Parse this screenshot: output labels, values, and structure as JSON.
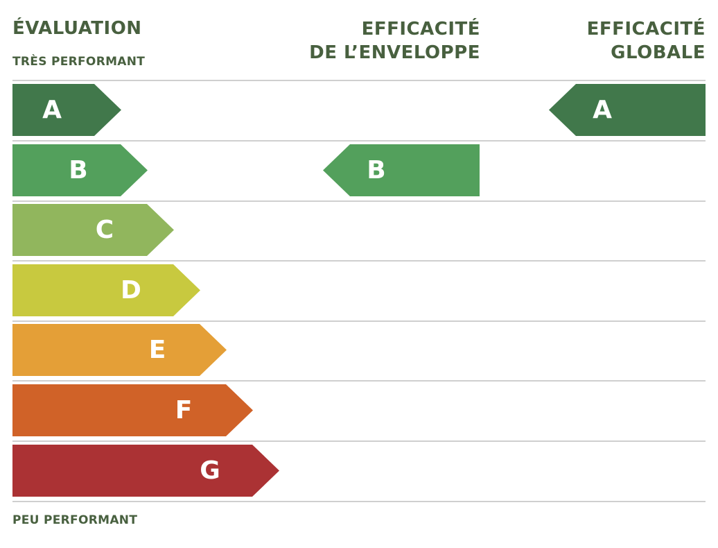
{
  "header": {
    "title": "ÉVALUATION",
    "top_label": "TRÈS PERFORMANT",
    "bottom_label": "PEU PERFORMANT",
    "col_envelope": "EFFICACITÉ\nDE L’ENVELOPPE",
    "col_global": "EFFICACITÉ\nGLOBALE"
  },
  "chart_data": {
    "type": "table",
    "scale": [
      {
        "letter": "A",
        "color": "#41784b"
      },
      {
        "letter": "B",
        "color": "#53a05c"
      },
      {
        "letter": "C",
        "color": "#91b65d"
      },
      {
        "letter": "D",
        "color": "#c8c93f"
      },
      {
        "letter": "E",
        "color": "#e49f37"
      },
      {
        "letter": "F",
        "color": "#d06228"
      },
      {
        "letter": "G",
        "color": "#ab3234"
      }
    ],
    "ratings": [
      {
        "column": "EFFICACITÉ DE L’ENVELOPPE",
        "rating": "B"
      },
      {
        "column": "EFFICACITÉ GLOBALE",
        "rating": "A"
      }
    ]
  },
  "colors": {
    "text": "#48603f",
    "separator": "#cfcfcf"
  }
}
